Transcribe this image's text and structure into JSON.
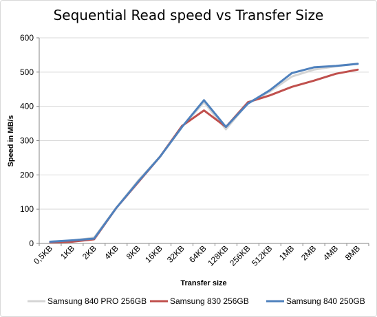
{
  "chart_data": {
    "type": "line",
    "title": "Sequential Read speed vs Transfer Size",
    "xlabel": "Transfer size",
    "ylabel": "Speed in MB/s",
    "ylim": [
      0,
      600
    ],
    "yticks": [
      "0",
      "100",
      "200",
      "300",
      "400",
      "500",
      "600"
    ],
    "grid": "horizontal",
    "legend_position": "bottom",
    "categories": [
      "0,5KB",
      "1KB",
      "2KB",
      "4KB",
      "8KB",
      "16KB",
      "32KB",
      "64KB",
      "128KB",
      "256KB",
      "512KB",
      "1MB",
      "2MB",
      "4MB",
      "8MB"
    ],
    "series": [
      {
        "name": "Samsung 840 PRO 256GB",
        "color": "#d4d4d4",
        "values": [
          5,
          8,
          17,
          103,
          183,
          253,
          340,
          412,
          333,
          410,
          443,
          487,
          507,
          517,
          525
        ]
      },
      {
        "name": "Samsung 830 256GB",
        "color": "#c0504d",
        "values": [
          3,
          5,
          12,
          103,
          178,
          253,
          343,
          388,
          340,
          412,
          432,
          457,
          475,
          495,
          507
        ]
      },
      {
        "name": "Samsung 840 250GB",
        "color": "#4f81bd",
        "values": [
          5,
          9,
          14,
          103,
          180,
          253,
          340,
          418,
          340,
          408,
          447,
          497,
          514,
          518,
          524
        ]
      }
    ]
  }
}
